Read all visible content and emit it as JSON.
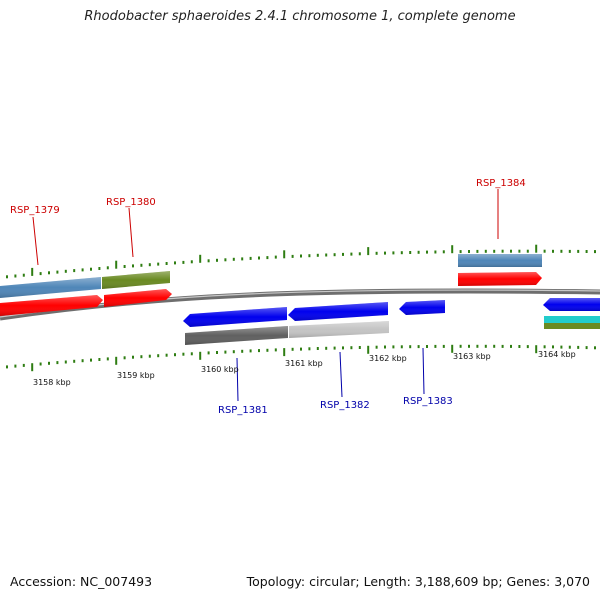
{
  "title": "Rhodobacter sphaeroides 2.4.1 chromosome 1, complete genome",
  "footer": {
    "accession": "Accession: NC_007493",
    "summary": "Topology: circular; Length: 3,188,609 bp; Genes: 3,070"
  },
  "kbp_labels": [
    "3158 kbp",
    "3159 kbp",
    "3160 kbp",
    "3161 kbp",
    "3162 kbp",
    "3163 kbp",
    "3164 kbp"
  ],
  "genes_top": [
    "RSP_1379",
    "RSP_1380",
    "RSP_1384"
  ],
  "genes_bottom": [
    "RSP_1381",
    "RSP_1382",
    "RSP_1383"
  ],
  "colors": {
    "top_label": "#cc0000",
    "bottom_label": "#0000aa",
    "tick": "#2e7d12",
    "backbone": "#8a8a8a",
    "red": "#ff0000",
    "blue": "#0000ee",
    "steelblue": "#4f86b8",
    "olive": "#6a8a22",
    "darkgray": "#606060",
    "lightgray": "#c4c4c4",
    "cyan": "#22cccc"
  }
}
